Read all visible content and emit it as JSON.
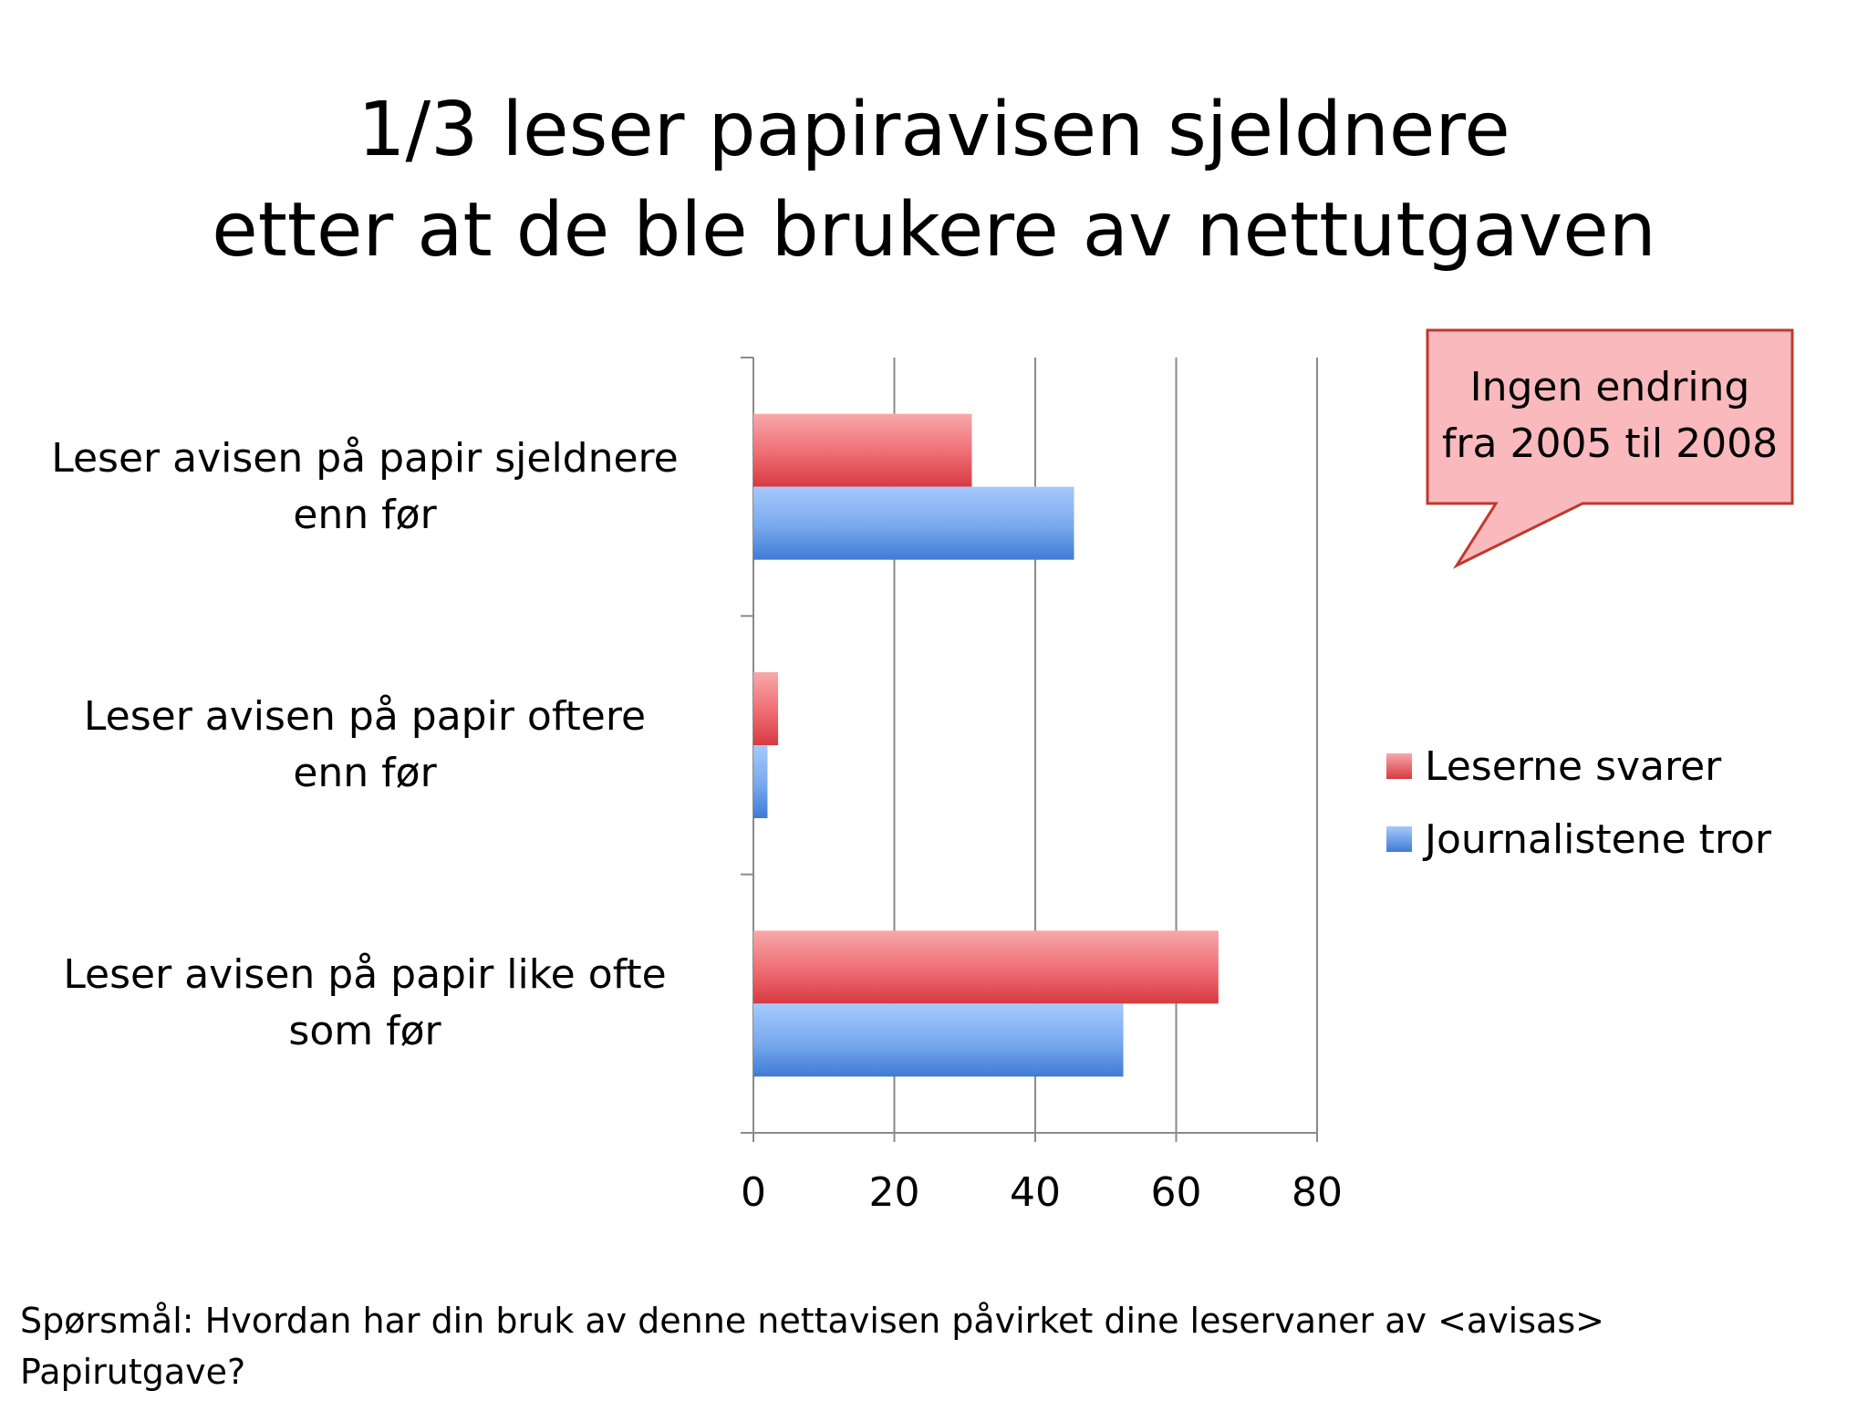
{
  "title": {
    "line1": "1/3 leser papiravisen sjeldnere",
    "line2": "etter at de ble brukere av nettutgaven"
  },
  "callout": {
    "line1": "Ingen endring",
    "line2": "fra 2005 til 2008",
    "fill": "#f9b9bd",
    "stroke": "#c0392b"
  },
  "footnote": {
    "line1": "Spørsmål: Hvordan har din bruk av denne nettavisen påvirket dine leservaner av <avisas>",
    "line2": "Papirutgave?"
  },
  "chart_data": {
    "type": "bar",
    "orientation": "horizontal",
    "categories": [
      [
        "Leser avisen på papir sjeldnere",
        "enn før"
      ],
      [
        "Leser avisen på papir oftere",
        "enn før"
      ],
      [
        "Leser avisen på papir like ofte",
        "som før"
      ]
    ],
    "series": [
      {
        "name": "Leserne svarer",
        "values": [
          31,
          3.5,
          66
        ],
        "color": "#e8474f"
      },
      {
        "name": "Journalistene tror",
        "values": [
          45.5,
          2,
          52.5
        ],
        "color": "#4a87d9"
      }
    ],
    "x_ticks": [
      "0",
      "20",
      "40",
      "60",
      "80"
    ],
    "xlim": [
      0,
      80
    ],
    "grid": true,
    "legend_position": "right"
  }
}
